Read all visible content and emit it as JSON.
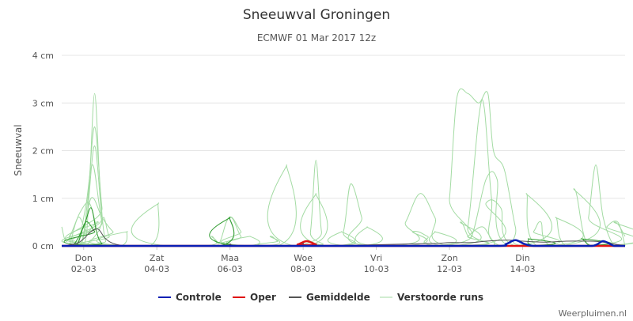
{
  "chart_data": {
    "type": "line",
    "title": "Sneeuwval Groningen",
    "subtitle": "ECMWF 01 Mar 2017 12z",
    "ylabel": "Sneeuwval",
    "xlabel": "",
    "ylim": [
      0,
      4
    ],
    "xlim": [
      1.4,
      16.8
    ],
    "y_ticks": [
      {
        "value": 0,
        "label": "0 cm"
      },
      {
        "value": 1,
        "label": "1 cm"
      },
      {
        "value": 2,
        "label": "2 cm"
      },
      {
        "value": 3,
        "label": "3 cm"
      },
      {
        "value": 4,
        "label": "4 cm"
      }
    ],
    "x_ticks": [
      {
        "value": 2,
        "day": "Don",
        "date": "02-03"
      },
      {
        "value": 4,
        "day": "Zat",
        "date": "04-03"
      },
      {
        "value": 6,
        "day": "Maa",
        "date": "06-03"
      },
      {
        "value": 8,
        "day": "Woe",
        "date": "08-03"
      },
      {
        "value": 10,
        "day": "Vri",
        "date": "10-03"
      },
      {
        "value": 12,
        "day": "Zon",
        "date": "12-03"
      },
      {
        "value": 14,
        "day": "Din",
        "date": "14-03"
      }
    ],
    "grid": true,
    "legend_position": "bottom",
    "colors": {
      "controle": "#0a1fb4",
      "oper": "#e01414",
      "gemiddelde": "#555555",
      "verstoorde": "#a3dba3",
      "verstoorde_dark": "#2e9a2e",
      "grid": "#e6e6e6",
      "baseline": "#cccccc"
    },
    "series": [
      {
        "name": "Controle",
        "color": "#0a1fb4",
        "x": [
          1.4,
          11.0,
          13.3,
          13.55,
          13.8,
          14.05,
          14.3,
          15.0,
          15.9,
          16.2,
          16.5,
          16.8
        ],
        "values": [
          0,
          0,
          0,
          0.04,
          0.12,
          0.04,
          0,
          0,
          0,
          0.1,
          0,
          0
        ]
      },
      {
        "name": "Oper",
        "color": "#e01414",
        "x": [
          1.4,
          7.6,
          7.85,
          8.1,
          8.35,
          8.6,
          16.8
        ],
        "values": [
          0,
          0,
          0.03,
          0.1,
          0.03,
          0,
          0
        ]
      },
      {
        "name": "Gemiddelde",
        "color": "#555555",
        "x": [
          1.4,
          1.8,
          2.0,
          2.2,
          2.4,
          2.6,
          2.9,
          3.5,
          5.8,
          6.0,
          6.2,
          7.7,
          8.0,
          8.3,
          11.4,
          12.0,
          12.6,
          13.0,
          13.6,
          14.0,
          14.6,
          15.2,
          15.8,
          16.2,
          16.8
        ],
        "values": [
          0,
          0.05,
          0.15,
          0.3,
          0.35,
          0.15,
          0.03,
          0,
          0,
          0.04,
          0,
          0,
          0.05,
          0,
          0.05,
          0.07,
          0.07,
          0.1,
          0.12,
          0.1,
          0.08,
          0.1,
          0.1,
          0.08,
          0
        ]
      }
    ],
    "ensemble_members": {
      "name": "Verstoorde runs",
      "members": [
        {
          "x": [
            1.4,
            2.0,
            2.15,
            2.3,
            2.45,
            2.6,
            2.9,
            16.8
          ],
          "values": [
            0,
            0,
            1.2,
            3.2,
            1.2,
            0.1,
            0,
            0
          ]
        },
        {
          "x": [
            1.4,
            1.9,
            2.1,
            2.3,
            2.5,
            2.7,
            16.8
          ],
          "values": [
            0,
            0,
            0.9,
            2.5,
            0.8,
            0,
            0
          ]
        },
        {
          "x": [
            1.4,
            1.9,
            2.1,
            2.3,
            2.5,
            2.7,
            16.8
          ],
          "values": [
            0,
            0,
            0.7,
            2.1,
            0.6,
            0,
            0
          ]
        },
        {
          "x": [
            1.4,
            1.8,
            2.05,
            2.25,
            2.5,
            2.8,
            16.8
          ],
          "values": [
            0,
            0,
            0.8,
            1.7,
            0.5,
            0,
            0
          ]
        },
        {
          "x": [
            1.4,
            1.9,
            2.2,
            2.5,
            2.8,
            3.3,
            16.8
          ],
          "values": [
            0,
            0,
            1.0,
            0.6,
            0.3,
            0,
            0
          ]
        },
        {
          "x": [
            1.4,
            1.6,
            1.85,
            2.1,
            2.4,
            2.6,
            16.8
          ],
          "values": [
            0,
            0,
            0.6,
            0.3,
            0.5,
            0,
            0
          ]
        },
        {
          "x": [
            1.4,
            1.55,
            1.9,
            2.15,
            2.35,
            2.5,
            16.8
          ],
          "values": [
            0.4,
            0.1,
            0.7,
            0.9,
            0.4,
            0,
            0
          ]
        },
        {
          "x": [
            1.4,
            2.0,
            2.4,
            2.55,
            2.7,
            3.0,
            16.8
          ],
          "values": [
            0,
            0,
            0.3,
            0.6,
            0.2,
            0,
            0
          ]
        },
        {
          "x": [
            1.4,
            3.0,
            3.2,
            3.4,
            16.8
          ],
          "values": [
            0,
            0,
            0.3,
            0,
            0
          ]
        },
        {
          "x": [
            1.4,
            3.8,
            4.05,
            4.3,
            16.8
          ],
          "values": [
            0,
            0,
            0.9,
            0,
            0
          ]
        },
        {
          "x": [
            1.4,
            5.3,
            5.5,
            5.7,
            5.9,
            6.05,
            6.3,
            6.6,
            16.8
          ],
          "values": [
            0,
            0,
            0.2,
            0.05,
            0.5,
            0.6,
            0.3,
            0,
            0
          ]
        },
        {
          "x": [
            1.4,
            5.7,
            6.0,
            6.3,
            6.6,
            16.8
          ],
          "values": [
            0,
            0,
            0.6,
            0.2,
            0,
            0
          ]
        },
        {
          "x": [
            1.4,
            6.4,
            6.55,
            6.7,
            16.8
          ],
          "values": [
            0,
            0,
            0.2,
            0,
            0
          ]
        },
        {
          "x": [
            1.4,
            6.9,
            7.1,
            7.3,
            7.5,
            16.8
          ],
          "values": [
            0,
            0,
            0.2,
            0.1,
            0,
            0
          ]
        },
        {
          "x": [
            1.4,
            7.3,
            7.55,
            7.75,
            16.8
          ],
          "values": [
            0,
            0,
            1.7,
            0,
            0
          ]
        },
        {
          "x": [
            1.4,
            8.0,
            8.2,
            8.35,
            8.5,
            8.7,
            16.8
          ],
          "values": [
            0,
            0,
            0.3,
            1.8,
            0.3,
            0,
            0
          ]
        },
        {
          "x": [
            1.4,
            8.1,
            8.35,
            8.6,
            16.8
          ],
          "values": [
            0,
            0,
            1.1,
            0,
            0
          ]
        },
        {
          "x": [
            1.4,
            8.8,
            9.1,
            9.3,
            9.6,
            9.8,
            16.8
          ],
          "values": [
            0,
            0,
            0.3,
            1.3,
            0.6,
            0,
            0
          ]
        },
        {
          "x": [
            1.4,
            8.8,
            9.05,
            9.3,
            16.8
          ],
          "values": [
            0,
            0,
            0.3,
            0,
            0
          ]
        },
        {
          "x": [
            1.4,
            9.5,
            9.75,
            10.0,
            16.8
          ],
          "values": [
            0,
            0,
            0.4,
            0,
            0
          ]
        },
        {
          "x": [
            1.4,
            10.4,
            10.8,
            11.2,
            11.6,
            12.0,
            16.8
          ],
          "values": [
            0,
            0,
            0.5,
            1.1,
            0.6,
            0,
            0
          ]
        },
        {
          "x": [
            1.4,
            10.6,
            11.0,
            11.4,
            11.8,
            16.8
          ],
          "values": [
            0,
            0,
            0.3,
            0.2,
            0,
            0
          ]
        },
        {
          "x": [
            1.4,
            11.4,
            11.6,
            11.9,
            16.8
          ],
          "values": [
            0,
            0,
            0.3,
            0,
            0
          ]
        },
        {
          "x": [
            1.4,
            11.8,
            12.0,
            12.2,
            12.5,
            12.8,
            13.05,
            13.2,
            13.5,
            13.8,
            14.0,
            16.8
          ],
          "values": [
            0,
            0,
            1.0,
            3.1,
            3.2,
            3.0,
            3.2,
            2.0,
            1.6,
            0.4,
            0,
            0
          ]
        },
        {
          "x": [
            1.4,
            12.2,
            12.5,
            12.8,
            12.95,
            13.15,
            13.4,
            16.8
          ],
          "values": [
            0,
            0,
            0.4,
            2.7,
            2.9,
            1.0,
            0,
            0
          ]
        },
        {
          "x": [
            1.4,
            12.0,
            12.3,
            12.6,
            13.0,
            13.3,
            13.6,
            16.8
          ],
          "values": [
            0,
            0,
            0.5,
            0.2,
            1.4,
            1.4,
            0,
            0
          ]
        },
        {
          "x": [
            1.4,
            12.6,
            13.0,
            13.4,
            13.8,
            16.8
          ],
          "values": [
            0,
            0,
            0.9,
            0.8,
            0,
            0
          ]
        },
        {
          "x": [
            1.4,
            12.2,
            12.5,
            12.9,
            13.2,
            13.6,
            16.8
          ],
          "values": [
            0,
            0,
            0.2,
            0.4,
            0.1,
            0,
            0
          ]
        },
        {
          "x": [
            1.4,
            13.8,
            14.1,
            14.4,
            16.8
          ],
          "values": [
            0,
            0,
            1.1,
            0,
            0
          ]
        },
        {
          "x": [
            1.4,
            14.0,
            14.3,
            14.5,
            14.8,
            16.8
          ],
          "values": [
            0,
            0,
            0.3,
            0.5,
            0,
            0
          ]
        },
        {
          "x": [
            1.4,
            14.6,
            14.9,
            15.2,
            16.8
          ],
          "values": [
            0,
            0,
            0.6,
            0,
            0
          ]
        },
        {
          "x": [
            1.4,
            15.0,
            15.4,
            15.8,
            16.8
          ],
          "values": [
            0,
            0,
            1.2,
            0,
            0
          ]
        },
        {
          "x": [
            1.4,
            15.6,
            15.8,
            16.0,
            16.2,
            16.5,
            16.8
          ],
          "values": [
            0,
            0,
            0.6,
            1.7,
            0.6,
            0,
            0
          ]
        },
        {
          "x": [
            1.4,
            16.0,
            16.3,
            16.6,
            16.8
          ],
          "values": [
            0,
            0,
            0.4,
            0.5,
            0
          ]
        },
        {
          "x": [
            1.4,
            16.2,
            16.5,
            16.8
          ],
          "values": [
            0,
            0,
            0.5,
            0.2
          ]
        }
      ],
      "dark_members": [
        {
          "x": [
            1.4,
            1.7,
            2.0,
            2.2,
            2.35,
            2.5,
            2.8,
            16.8
          ],
          "values": [
            0,
            0,
            0.4,
            0.8,
            0.3,
            0.05,
            0,
            0
          ]
        },
        {
          "x": [
            1.4,
            1.8,
            2.05,
            2.3,
            2.6,
            16.8
          ],
          "values": [
            0,
            0,
            0.5,
            0.3,
            0,
            0
          ]
        },
        {
          "x": [
            1.4,
            5.7,
            6.0,
            6.3,
            16.8
          ],
          "values": [
            0,
            0,
            0.6,
            0,
            0
          ]
        },
        {
          "x": [
            1.4,
            13.9,
            14.15,
            14.4,
            16.8
          ],
          "values": [
            0,
            0,
            0.15,
            0,
            0
          ]
        },
        {
          "x": [
            1.4,
            15.3,
            15.6,
            15.9,
            16.8
          ],
          "values": [
            0,
            0,
            0.15,
            0,
            0
          ]
        }
      ]
    }
  },
  "legend": {
    "items": [
      {
        "label": "Controle",
        "color": "#0a1fb4"
      },
      {
        "label": "Oper",
        "color": "#e01414"
      },
      {
        "label": "Gemiddelde",
        "color": "#555555"
      },
      {
        "label": "Verstoorde runs",
        "color": "#a3dba3"
      }
    ]
  },
  "credit": "Weerpluimen.nl"
}
